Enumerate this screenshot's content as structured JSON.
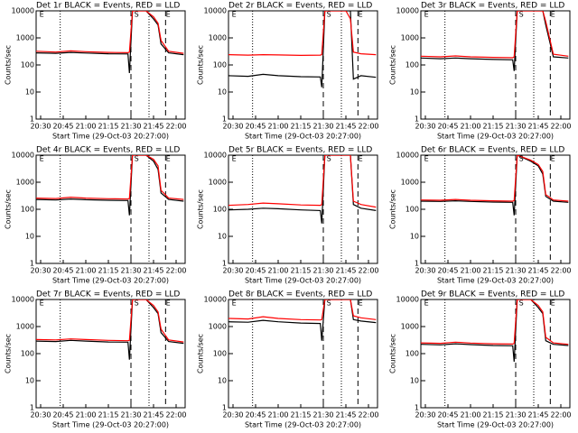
{
  "chart_data": [
    {
      "type": "line",
      "title": "Det 1r BLACK = Events, RED = LLD",
      "x_label": "Start Time (29-Oct-03 20:27:00)",
      "y_label": "Counts/sec",
      "log_y": true,
      "x": [
        "20:27",
        "20:40",
        "20:50",
        "21:00",
        "21:15",
        "21:28",
        "21:29",
        "21:31",
        "21:40",
        "21:45",
        "21:48",
        "21:50",
        "21:55",
        "22:05"
      ],
      "series": [
        {
          "name": "Events",
          "color": "#000000",
          "values": [
            280,
            270,
            290,
            275,
            260,
            255,
            50,
            10000,
            10000,
            5000,
            3000,
            600,
            280,
            240
          ]
        },
        {
          "name": "LLD",
          "color": "#ff0000",
          "values": [
            320,
            300,
            330,
            310,
            290,
            285,
            300,
            10000,
            10000,
            6000,
            3500,
            800,
            320,
            270
          ]
        }
      ],
      "xlim": [
        "20:27",
        "22:06"
      ],
      "xticks": [
        "20:30",
        "20:45",
        "21:00",
        "21:15",
        "21:30",
        "21:45",
        "22:00"
      ],
      "ylim": [
        1,
        10000
      ],
      "yticks": [
        1,
        10,
        100,
        1000,
        10000
      ],
      "dotted_lines": [
        "20:43",
        "21:42"
      ],
      "dashed_lines": [
        "21:30",
        "21:53"
      ],
      "annotations": [
        {
          "text": "E",
          "x": "20:28"
        },
        {
          "text": "S",
          "x": "21:31"
        },
        {
          "text": "E",
          "x": "21:52"
        }
      ]
    },
    {
      "type": "line",
      "title": "Det 2r BLACK = Events, RED = LLD",
      "x_label": "Start Time (29-Oct-03 20:27:00)",
      "y_label": "Counts/sec",
      "log_y": true,
      "x": [
        "20:27",
        "20:40",
        "20:50",
        "21:00",
        "21:15",
        "21:28",
        "21:29",
        "21:31",
        "21:40",
        "21:45",
        "21:48",
        "21:50",
        "21:55",
        "22:05"
      ],
      "series": [
        {
          "name": "Events",
          "color": "#000000",
          "values": [
            40,
            38,
            45,
            40,
            37,
            36,
            15,
            10000,
            10000,
            10000,
            10000,
            30,
            40,
            35
          ]
        },
        {
          "name": "LLD",
          "color": "#ff0000",
          "values": [
            240,
            230,
            240,
            235,
            225,
            230,
            240,
            10000,
            10000,
            10000,
            5000,
            300,
            260,
            240
          ]
        }
      ],
      "xlim": [
        "20:27",
        "22:06"
      ],
      "xticks": [
        "20:30",
        "20:45",
        "21:00",
        "21:15",
        "21:30",
        "21:45",
        "22:00"
      ],
      "ylim": [
        1,
        10000
      ],
      "yticks": [
        1,
        10,
        100,
        1000,
        10000
      ],
      "dotted_lines": [
        "20:43",
        "21:42"
      ],
      "dashed_lines": [
        "21:30",
        "21:53"
      ],
      "annotations": [
        {
          "text": "E",
          "x": "20:28"
        },
        {
          "text": "S",
          "x": "21:31"
        },
        {
          "text": "E",
          "x": "21:52"
        }
      ]
    },
    {
      "type": "line",
      "title": "Det 3r BLACK = Events, RED = LLD",
      "x_label": "Start Time (29-Oct-03 20:27:00)",
      "y_label": "Counts/sec",
      "log_y": true,
      "x": [
        "20:27",
        "20:40",
        "20:50",
        "21:00",
        "21:15",
        "21:28",
        "21:29",
        "21:31",
        "21:40",
        "21:45",
        "21:48",
        "21:50",
        "21:55",
        "22:05"
      ],
      "series": [
        {
          "name": "Events",
          "color": "#000000",
          "values": [
            180,
            170,
            180,
            170,
            160,
            155,
            60,
            10000,
            10000,
            10000,
            10000,
            3000,
            200,
            180
          ]
        },
        {
          "name": "LLD",
          "color": "#ff0000",
          "values": [
            210,
            200,
            215,
            200,
            190,
            185,
            200,
            10000,
            10000,
            10000,
            10000,
            4000,
            250,
            210
          ]
        }
      ],
      "xlim": [
        "20:27",
        "22:06"
      ],
      "xticks": [
        "20:30",
        "20:45",
        "21:00",
        "21:15",
        "21:30",
        "21:45",
        "22:00"
      ],
      "ylim": [
        1,
        10000
      ],
      "yticks": [
        1,
        10,
        100,
        1000,
        10000
      ],
      "dotted_lines": [
        "20:43",
        "21:42"
      ],
      "dashed_lines": [
        "21:30",
        "21:53"
      ],
      "annotations": [
        {
          "text": "E",
          "x": "20:28"
        },
        {
          "text": "S",
          "x": "21:31"
        },
        {
          "text": "E",
          "x": "21:52"
        }
      ]
    },
    {
      "type": "line",
      "title": "Det 4r BLACK = Events, RED = LLD",
      "x_label": "Start Time (29-Oct-03 20:27:00)",
      "y_label": "Counts/sec",
      "log_y": true,
      "x": [
        "20:27",
        "20:40",
        "20:50",
        "21:00",
        "21:15",
        "21:28",
        "21:29",
        "21:31",
        "21:40",
        "21:45",
        "21:48",
        "21:50",
        "21:55",
        "22:05"
      ],
      "series": [
        {
          "name": "Events",
          "color": "#000000",
          "values": [
            230,
            220,
            240,
            225,
            215,
            210,
            60,
            10000,
            10000,
            6000,
            3000,
            400,
            230,
            200
          ]
        },
        {
          "name": "LLD",
          "color": "#ff0000",
          "values": [
            260,
            250,
            280,
            260,
            245,
            240,
            250,
            10000,
            10000,
            7000,
            4000,
            500,
            260,
            230
          ]
        }
      ],
      "xlim": [
        "20:27",
        "22:06"
      ],
      "xticks": [
        "20:30",
        "20:45",
        "21:00",
        "21:15",
        "21:30",
        "21:45",
        "22:00"
      ],
      "ylim": [
        1,
        10000
      ],
      "yticks": [
        1,
        10,
        100,
        1000,
        10000
      ],
      "dotted_lines": [
        "20:43",
        "21:42"
      ],
      "dashed_lines": [
        "21:30",
        "21:53"
      ],
      "annotations": [
        {
          "text": "E",
          "x": "20:28"
        },
        {
          "text": "S",
          "x": "21:31"
        },
        {
          "text": "E",
          "x": "21:52"
        }
      ]
    },
    {
      "type": "line",
      "title": "Det 5r BLACK = Events, RED = LLD",
      "x_label": "Start Time (29-Oct-03 20:27:00)",
      "y_label": "Counts/sec",
      "log_y": true,
      "x": [
        "20:27",
        "20:40",
        "20:50",
        "21:00",
        "21:15",
        "21:28",
        "21:29",
        "21:31",
        "21:40",
        "21:45",
        "21:48",
        "21:50",
        "21:55",
        "22:05"
      ],
      "series": [
        {
          "name": "Events",
          "color": "#000000",
          "values": [
            95,
            100,
            110,
            105,
            95,
            90,
            30,
            10000,
            10000,
            10000,
            10000,
            150,
            110,
            90
          ]
        },
        {
          "name": "LLD",
          "color": "#ff0000",
          "values": [
            140,
            150,
            170,
            160,
            145,
            140,
            150,
            10000,
            10000,
            10000,
            10000,
            200,
            150,
            120
          ]
        }
      ],
      "xlim": [
        "20:27",
        "22:06"
      ],
      "xticks": [
        "20:30",
        "20:45",
        "21:00",
        "21:15",
        "21:30",
        "21:45",
        "22:00"
      ],
      "ylim": [
        1,
        10000
      ],
      "yticks": [
        1,
        10,
        100,
        1000,
        10000
      ],
      "dotted_lines": [
        "20:43",
        "21:42"
      ],
      "dashed_lines": [
        "21:30",
        "21:53"
      ],
      "annotations": [
        {
          "text": "E",
          "x": "20:28"
        },
        {
          "text": "S",
          "x": "21:31"
        },
        {
          "text": "E",
          "x": "21:52"
        }
      ]
    },
    {
      "type": "line",
      "title": "Det 6r BLACK = Events, RED = LLD",
      "x_label": "Start Time (29-Oct-03 20:27:00)",
      "y_label": "Counts/sec",
      "log_y": true,
      "x": [
        "20:27",
        "20:40",
        "20:50",
        "21:00",
        "21:15",
        "21:28",
        "21:29",
        "21:31",
        "21:40",
        "21:45",
        "21:48",
        "21:50",
        "21:55",
        "22:05"
      ],
      "series": [
        {
          "name": "Events",
          "color": "#000000",
          "values": [
            200,
            195,
            205,
            195,
            185,
            180,
            60,
            10000,
            6000,
            4000,
            2000,
            300,
            200,
            180
          ]
        },
        {
          "name": "LLD",
          "color": "#ff0000",
          "values": [
            220,
            215,
            230,
            215,
            205,
            200,
            210,
            10000,
            6500,
            4500,
            2500,
            350,
            220,
            200
          ]
        }
      ],
      "xlim": [
        "20:27",
        "22:06"
      ],
      "xticks": [
        "20:30",
        "20:45",
        "21:00",
        "21:15",
        "21:30",
        "21:45",
        "22:00"
      ],
      "ylim": [
        1,
        10000
      ],
      "yticks": [
        1,
        10,
        100,
        1000,
        10000
      ],
      "dotted_lines": [
        "20:43",
        "21:42"
      ],
      "dashed_lines": [
        "21:30",
        "21:53"
      ],
      "annotations": [
        {
          "text": "E",
          "x": "20:28"
        },
        {
          "text": "S",
          "x": "21:31"
        },
        {
          "text": "E",
          "x": "21:52"
        }
      ]
    },
    {
      "type": "line",
      "title": "Det 7r BLACK = Events, RED = LLD",
      "x_label": "Start Time (29-Oct-03 20:27:00)",
      "y_label": "Counts/sec",
      "log_y": true,
      "x": [
        "20:27",
        "20:40",
        "20:50",
        "21:00",
        "21:15",
        "21:28",
        "21:29",
        "21:31",
        "21:40",
        "21:45",
        "21:48",
        "21:50",
        "21:55",
        "22:05"
      ],
      "series": [
        {
          "name": "Events",
          "color": "#000000",
          "values": [
            290,
            280,
            310,
            290,
            270,
            265,
            60,
            10000,
            10000,
            5000,
            3000,
            600,
            280,
            240
          ]
        },
        {
          "name": "LLD",
          "color": "#ff0000",
          "values": [
            330,
            320,
            350,
            330,
            310,
            300,
            310,
            10000,
            10000,
            6000,
            3500,
            800,
            320,
            270
          ]
        }
      ],
      "xlim": [
        "20:27",
        "22:06"
      ],
      "xticks": [
        "20:30",
        "20:45",
        "21:00",
        "21:15",
        "21:30",
        "21:45",
        "22:00"
      ],
      "ylim": [
        1,
        10000
      ],
      "yticks": [
        1,
        10,
        100,
        1000,
        10000
      ],
      "dotted_lines": [
        "20:43",
        "21:42"
      ],
      "dashed_lines": [
        "21:30",
        "21:53"
      ],
      "annotations": [
        {
          "text": "E",
          "x": "20:28"
        },
        {
          "text": "S",
          "x": "21:31"
        },
        {
          "text": "E",
          "x": "21:52"
        }
      ]
    },
    {
      "type": "line",
      "title": "Det 8r BLACK = Events, RED = LLD",
      "x_label": "Start Time (29-Oct-03 20:27:00)",
      "y_label": "Counts/sec",
      "log_y": true,
      "x": [
        "20:27",
        "20:40",
        "20:50",
        "21:00",
        "21:15",
        "21:28",
        "21:29",
        "21:31",
        "21:40",
        "21:45",
        "21:48",
        "21:50",
        "21:55",
        "22:05"
      ],
      "series": [
        {
          "name": "Events",
          "color": "#000000",
          "values": [
            1500,
            1450,
            1700,
            1500,
            1350,
            1300,
            300,
            10000,
            10000,
            10000,
            10000,
            1800,
            1600,
            1400
          ]
        },
        {
          "name": "LLD",
          "color": "#ff0000",
          "values": [
            2000,
            1900,
            2300,
            2000,
            1800,
            1750,
            1800,
            10000,
            10000,
            10000,
            10000,
            2500,
            2100,
            1800
          ]
        }
      ],
      "xlim": [
        "20:27",
        "22:06"
      ],
      "xticks": [
        "20:30",
        "20:45",
        "21:00",
        "21:15",
        "21:30",
        "21:45",
        "22:00"
      ],
      "ylim": [
        1,
        10000
      ],
      "yticks": [
        1,
        10,
        100,
        1000,
        10000
      ],
      "dotted_lines": [
        "20:43",
        "21:42"
      ],
      "dashed_lines": [
        "21:30",
        "21:53"
      ],
      "annotations": [
        {
          "text": "E",
          "x": "20:28"
        },
        {
          "text": "S",
          "x": "21:31"
        },
        {
          "text": "E",
          "x": "21:52"
        }
      ]
    },
    {
      "type": "line",
      "title": "Det 9r BLACK = Events, RED = LLD",
      "x_label": "Start Time (29-Oct-03 20:27:00)",
      "y_label": "Counts/sec",
      "log_y": true,
      "x": [
        "20:27",
        "20:40",
        "20:50",
        "21:00",
        "21:15",
        "21:28",
        "21:29",
        "21:31",
        "21:40",
        "21:45",
        "21:48",
        "21:50",
        "21:55",
        "22:05"
      ],
      "series": [
        {
          "name": "Events",
          "color": "#000000",
          "values": [
            220,
            210,
            230,
            215,
            200,
            195,
            50,
            10000,
            10000,
            5000,
            3000,
            300,
            220,
            200
          ]
        },
        {
          "name": "LLD",
          "color": "#ff0000",
          "values": [
            250,
            240,
            265,
            245,
            230,
            225,
            240,
            10000,
            10000,
            6000,
            3500,
            400,
            250,
            220
          ]
        }
      ],
      "xlim": [
        "20:27",
        "22:06"
      ],
      "xticks": [
        "20:30",
        "20:45",
        "21:00",
        "21:15",
        "21:30",
        "21:45",
        "22:00"
      ],
      "ylim": [
        1,
        10000
      ],
      "yticks": [
        1,
        10,
        100,
        1000,
        10000
      ],
      "dotted_lines": [
        "20:43",
        "21:42"
      ],
      "dashed_lines": [
        "21:30",
        "21:53"
      ],
      "annotations": [
        {
          "text": "E",
          "x": "20:28"
        },
        {
          "text": "S",
          "x": "21:31"
        },
        {
          "text": "E",
          "x": "21:52"
        }
      ]
    }
  ]
}
